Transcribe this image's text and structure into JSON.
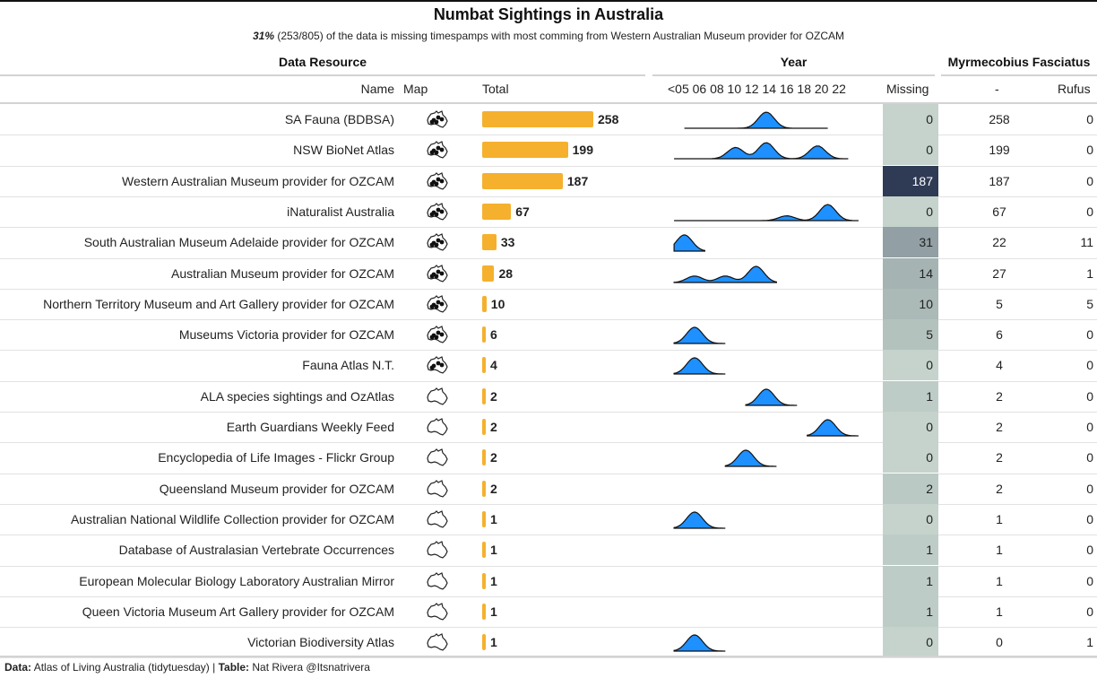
{
  "title": "Numbat Sightings in Australia",
  "subtitle_pct": "31%",
  "subtitle_rest": " (253/805) of the data is missing timespamps with most comming from Western Australian Museum provider for OZCAM",
  "spanners": {
    "data_resource": "Data Resource",
    "year": "Year",
    "species": "Myrmecobius Fasciatus"
  },
  "columns": {
    "name": "Name",
    "map": "Map",
    "total": "Total",
    "year_ticks": "<05 06 08 10 12 14 16 18 20 22",
    "missing": "Missing",
    "dash": "-",
    "rufus": "Rufus"
  },
  "colors": {
    "bar": "#f5b02e",
    "density": "#1e90ff",
    "missing_low": "#c5d3cc",
    "missing_high": "#2f3a55"
  },
  "footer": {
    "data_label": "Data:",
    "data_text": " Atlas of Living Australia (tidytuesday) | ",
    "table_label": "Table:",
    "table_text": " Nat Rivera @Itsnatrivera"
  },
  "chart_data": {
    "type": "table",
    "title": "Numbat Sightings in Australia",
    "year_range": [
      2005,
      2022
    ],
    "rows": [
      {
        "name": "SA Fauna (BDBSA)",
        "total": 258,
        "missing": 0,
        "dash": 258,
        "rufus": 0,
        "year_peaks": [
          [
            2014,
            1.0
          ]
        ],
        "year_span": [
          2006,
          2020
        ],
        "map_icon": "australia-map-icon"
      },
      {
        "name": "NSW BioNet Atlas",
        "total": 199,
        "missing": 0,
        "dash": 199,
        "rufus": 0,
        "year_peaks": [
          [
            2011,
            0.7
          ],
          [
            2014,
            1.0
          ],
          [
            2019,
            0.8
          ]
        ],
        "year_span": [
          2005,
          2022
        ],
        "map_icon": "australia-map-icon"
      },
      {
        "name": "Western Australian Museum provider for OZCAM",
        "total": 187,
        "missing": 187,
        "dash": 187,
        "rufus": 0,
        "year_peaks": [],
        "year_span": null,
        "map_icon": "australia-map-icon"
      },
      {
        "name": "iNaturalist Australia",
        "total": 67,
        "missing": 0,
        "dash": 67,
        "rufus": 0,
        "year_peaks": [
          [
            2016,
            0.3
          ],
          [
            2020,
            1.0
          ]
        ],
        "year_span": [
          2005,
          2023
        ],
        "map_icon": "australia-map-icon"
      },
      {
        "name": "South Australian Museum Adelaide provider for OZCAM",
        "total": 33,
        "missing": 31,
        "dash": 22,
        "rufus": 11,
        "year_peaks": [
          [
            2006,
            1.0
          ]
        ],
        "year_span": [
          2005,
          2008
        ],
        "map_icon": "australia-map-icon"
      },
      {
        "name": "Australian Museum provider for OZCAM",
        "total": 28,
        "missing": 14,
        "dash": 27,
        "rufus": 1,
        "year_peaks": [
          [
            2007,
            0.4
          ],
          [
            2010,
            0.4
          ],
          [
            2013,
            1.0
          ]
        ],
        "year_span": [
          2005,
          2015
        ],
        "map_icon": "australia-map-icon"
      },
      {
        "name": "Northern Territory Museum and Art Gallery provider for OZCAM",
        "total": 10,
        "missing": 10,
        "dash": 5,
        "rufus": 5,
        "year_peaks": [],
        "year_span": null,
        "map_icon": "australia-map-icon"
      },
      {
        "name": "Museums Victoria provider for OZCAM",
        "total": 6,
        "missing": 5,
        "dash": 6,
        "rufus": 0,
        "year_peaks": [
          [
            2007,
            1.0
          ]
        ],
        "year_span": [
          2005,
          2010
        ],
        "map_icon": "australia-map-icon"
      },
      {
        "name": "Fauna Atlas N.T.",
        "total": 4,
        "missing": 0,
        "dash": 4,
        "rufus": 0,
        "year_peaks": [
          [
            2007,
            1.0
          ]
        ],
        "year_span": [
          2005,
          2010
        ],
        "map_icon": "australia-map-icon"
      },
      {
        "name": "ALA species sightings and OzAtlas",
        "total": 2,
        "missing": 1,
        "dash": 2,
        "rufus": 0,
        "year_peaks": [
          [
            2014,
            1.0
          ]
        ],
        "year_span": [
          2012,
          2017
        ],
        "map_icon": "australia-map-icon"
      },
      {
        "name": "Earth Guardians Weekly Feed",
        "total": 2,
        "missing": 0,
        "dash": 2,
        "rufus": 0,
        "year_peaks": [
          [
            2020,
            1.0
          ]
        ],
        "year_span": [
          2018,
          2023
        ],
        "map_icon": "australia-map-icon"
      },
      {
        "name": "Encyclopedia of Life Images - Flickr Group",
        "total": 2,
        "missing": 0,
        "dash": 2,
        "rufus": 0,
        "year_peaks": [
          [
            2012,
            1.0
          ]
        ],
        "year_span": [
          2010,
          2015
        ],
        "map_icon": "australia-map-icon"
      },
      {
        "name": "Queensland Museum provider for OZCAM",
        "total": 2,
        "missing": 2,
        "dash": 2,
        "rufus": 0,
        "year_peaks": [],
        "year_span": null,
        "map_icon": "australia-map-icon"
      },
      {
        "name": "Australian National Wildlife Collection provider for OZCAM",
        "total": 1,
        "missing": 0,
        "dash": 1,
        "rufus": 0,
        "year_peaks": [
          [
            2007,
            1.0
          ]
        ],
        "year_span": [
          2005,
          2010
        ],
        "map_icon": "australia-map-icon"
      },
      {
        "name": "Database of Australasian Vertebrate Occurrences",
        "total": 1,
        "missing": 1,
        "dash": 1,
        "rufus": 0,
        "year_peaks": [],
        "year_span": null,
        "map_icon": "australia-map-icon"
      },
      {
        "name": "European Molecular Biology Laboratory Australian Mirror",
        "total": 1,
        "missing": 1,
        "dash": 1,
        "rufus": 0,
        "year_peaks": [],
        "year_span": null,
        "map_icon": "australia-map-icon"
      },
      {
        "name": "Queen Victoria Museum Art Gallery provider for OZCAM",
        "total": 1,
        "missing": 1,
        "dash": 1,
        "rufus": 0,
        "year_peaks": [],
        "year_span": null,
        "map_icon": "australia-map-icon"
      },
      {
        "name": "Victorian Biodiversity Atlas",
        "total": 1,
        "missing": 0,
        "dash": 0,
        "rufus": 1,
        "year_peaks": [
          [
            2007,
            1.0
          ]
        ],
        "year_span": [
          2005,
          2010
        ],
        "map_icon": "australia-map-icon"
      }
    ]
  }
}
